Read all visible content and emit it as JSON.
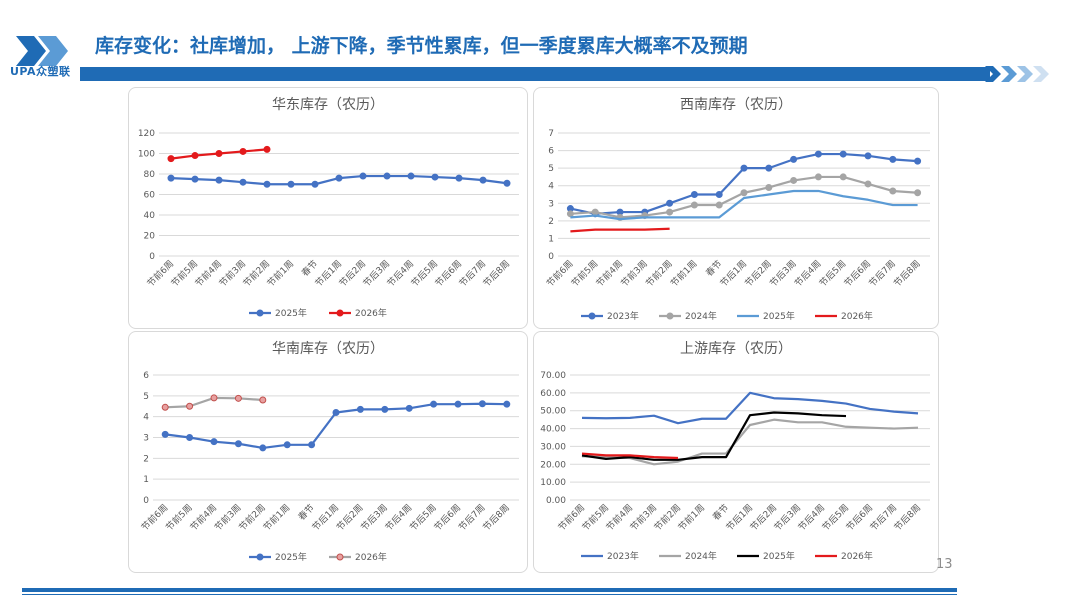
{
  "header": {
    "title": "库存变化：社库增加， 上游下降，季节性累库，但一季度累库大概率不及预期",
    "logo_text": "UPA众塑联",
    "brand_color": "#1f6bb5"
  },
  "page_number": "13",
  "colors": {
    "blue_series": "#4472c4",
    "red_series": "#e31a1c",
    "gray_series": "#a5a5a5",
    "light_blue_series": "#5b9bd5",
    "black_series": "#000000",
    "grid": "#d9d9d9"
  },
  "chart_data": [
    {
      "id": "east",
      "type": "line",
      "title": "华东库存（农历）",
      "categories": [
        "节前6周",
        "节前5周",
        "节前4周",
        "节前3周",
        "节前2周",
        "节前1周",
        "春节",
        "节后1周",
        "节后2周",
        "节后3周",
        "节后4周",
        "节后5周",
        "节后6周",
        "节后7周",
        "节后8周"
      ],
      "ylim": [
        0,
        120
      ],
      "yticks": [
        0,
        20,
        40,
        60,
        80,
        100,
        120
      ],
      "ytick_format": "int",
      "series": [
        {
          "name": "2025年",
          "color": "#4472c4",
          "markers": true,
          "values": [
            76,
            75,
            74,
            72,
            70,
            70,
            70,
            76,
            78,
            78,
            78,
            77,
            76,
            74,
            71
          ]
        },
        {
          "name": "2026年",
          "color": "#e31a1c",
          "markers": true,
          "values": [
            95,
            98,
            100,
            102,
            104,
            null,
            null,
            null,
            null,
            null,
            null,
            null,
            null,
            null,
            null
          ]
        }
      ]
    },
    {
      "id": "southwest",
      "type": "line",
      "title": "西南库存（农历）",
      "categories": [
        "节前6周",
        "节前5周",
        "节前4周",
        "节前3周",
        "节前2周",
        "节前1周",
        "春节",
        "节后1周",
        "节后2周",
        "节后3周",
        "节后4周",
        "节后5周",
        "节后6周",
        "节后7周",
        "节后8周"
      ],
      "ylim": [
        0,
        7
      ],
      "yticks": [
        0,
        1,
        2,
        3,
        4,
        5,
        6,
        7
      ],
      "ytick_format": "int",
      "series": [
        {
          "name": "2023年",
          "color": "#4472c4",
          "markers": true,
          "values": [
            2.7,
            2.4,
            2.5,
            2.5,
            3.0,
            3.5,
            3.5,
            5.0,
            5.0,
            5.5,
            5.8,
            5.8,
            5.7,
            5.5,
            5.4
          ]
        },
        {
          "name": "2024年",
          "color": "#a5a5a5",
          "markers": true,
          "values": [
            2.4,
            2.5,
            2.2,
            2.3,
            2.5,
            2.9,
            2.9,
            3.6,
            3.9,
            4.3,
            4.5,
            4.5,
            4.1,
            3.7,
            3.6
          ]
        },
        {
          "name": "2025年",
          "color": "#5b9bd5",
          "markers": false,
          "values": [
            2.2,
            2.3,
            2.1,
            2.2,
            2.2,
            2.2,
            2.2,
            3.3,
            3.5,
            3.7,
            3.7,
            3.4,
            3.2,
            2.9,
            2.9
          ]
        },
        {
          "name": "2026年",
          "color": "#e31a1c",
          "markers": false,
          "values": [
            1.4,
            1.5,
            1.5,
            1.5,
            1.55,
            null,
            null,
            null,
            null,
            null,
            null,
            null,
            null,
            null,
            null
          ]
        }
      ]
    },
    {
      "id": "south",
      "type": "line",
      "title": "华南库存（农历）",
      "categories": [
        "节前6周",
        "节前5周",
        "节前4周",
        "节前3周",
        "节前2周",
        "节前1周",
        "春节",
        "节后1周",
        "节后2周",
        "节后3周",
        "节后4周",
        "节后5周",
        "节后6周",
        "节后7周",
        "节后8周"
      ],
      "ylim": [
        0,
        6
      ],
      "yticks": [
        0,
        1,
        2,
        3,
        4,
        5,
        6
      ],
      "ytick_format": "int",
      "series": [
        {
          "name": "2025年",
          "color": "#4472c4",
          "markers": true,
          "values": [
            3.15,
            3.0,
            2.8,
            2.7,
            2.5,
            2.65,
            2.65,
            4.2,
            4.35,
            4.35,
            4.4,
            4.6,
            4.6,
            4.62,
            4.6
          ]
        },
        {
          "name": "2026年",
          "color": "#a5a5a5",
          "markers": true,
          "marker_fill": "#e8a0a0",
          "values": [
            4.45,
            4.5,
            4.9,
            4.88,
            4.8,
            null,
            null,
            null,
            null,
            null,
            null,
            null,
            null,
            null,
            null
          ]
        }
      ]
    },
    {
      "id": "upstream",
      "type": "line",
      "title": "上游库存（农历）",
      "categories": [
        "节前6周",
        "节前5周",
        "节前4周",
        "节前3周",
        "节前2周",
        "节前1周",
        "春节",
        "节后1周",
        "节后2周",
        "节后3周",
        "节后4周",
        "节后5周",
        "节后6周",
        "节后7周",
        "节后8周"
      ],
      "ylim": [
        0,
        70
      ],
      "yticks": [
        0,
        10,
        20,
        30,
        40,
        50,
        60,
        70
      ],
      "ytick_format": "2dp",
      "series": [
        {
          "name": "2023年",
          "color": "#4472c4",
          "markers": false,
          "values": [
            46,
            45.8,
            46,
            47.2,
            43,
            45.5,
            45.5,
            60,
            57,
            56.5,
            55.5,
            54,
            51,
            49.5,
            48.5
          ]
        },
        {
          "name": "2024年",
          "color": "#a5a5a5",
          "markers": false,
          "values": [
            24.5,
            24,
            23.5,
            20,
            21.5,
            26,
            26,
            42,
            45,
            43.5,
            43.5,
            41,
            40.5,
            40,
            40.5
          ]
        },
        {
          "name": "2025年",
          "color": "#000000",
          "markers": false,
          "values": [
            25,
            23,
            24,
            22.5,
            22.5,
            24,
            24,
            47.5,
            49,
            48.5,
            47.5,
            47,
            null,
            null,
            null
          ]
        },
        {
          "name": "2026年",
          "color": "#e31a1c",
          "markers": false,
          "values": [
            26,
            25,
            25,
            24,
            23.5,
            null,
            null,
            null,
            null,
            null,
            null,
            null,
            null,
            null,
            null
          ]
        }
      ]
    }
  ]
}
